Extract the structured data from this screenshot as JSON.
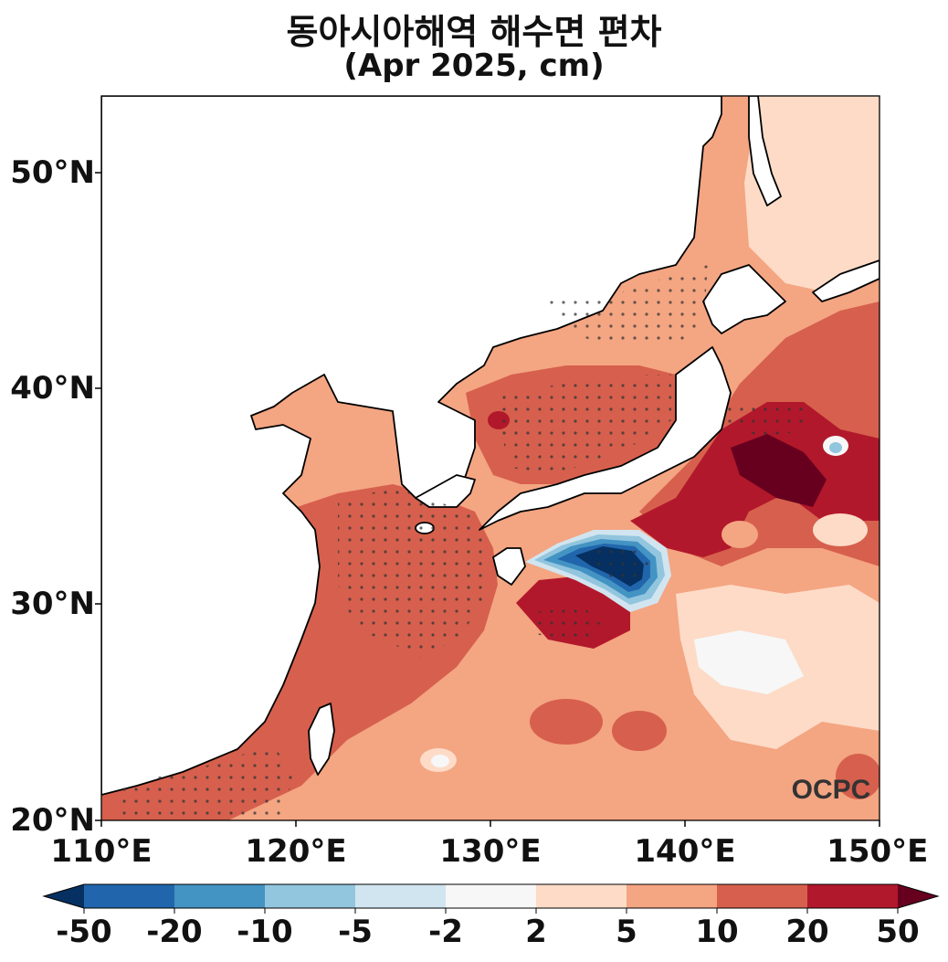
{
  "title": "동아시아해역 해수면 편차",
  "subtitle": "(Apr 2025, cm)",
  "watermark": "OCPC",
  "map": {
    "lon_range": [
      110,
      150
    ],
    "lat_range": [
      20,
      53.5
    ],
    "projection": "plate-carree",
    "stippling": "dots mark significant anomalies",
    "lat_ticks": [
      "20°N",
      "30°N",
      "40°N",
      "50°N"
    ],
    "lon_ticks": [
      "110°E",
      "120°E",
      "130°E",
      "140°E",
      "150°E"
    ]
  },
  "colorbar": {
    "levels": [
      "-50",
      "-20",
      "-10",
      "-5",
      "-2",
      "2",
      "5",
      "10",
      "20",
      "50"
    ],
    "colors": [
      "#053061",
      "#2166ac",
      "#4393c3",
      "#92c5de",
      "#d1e5f0",
      "#f7f7f7",
      "#fddbc7",
      "#f4a582",
      "#d6604d",
      "#b2182b",
      "#67001f"
    ],
    "extend": "both"
  }
}
